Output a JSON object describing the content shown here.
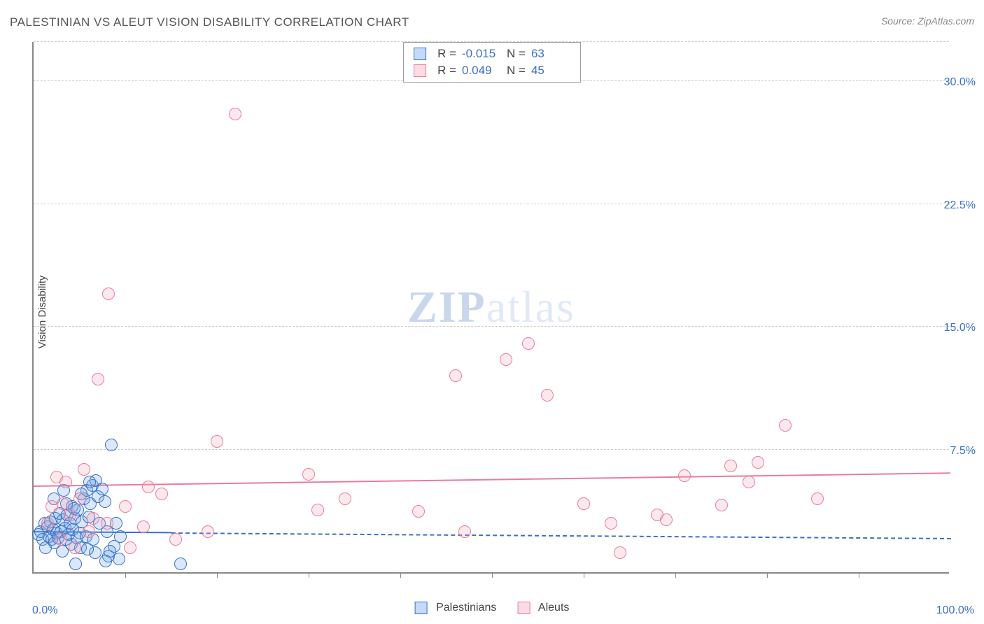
{
  "title": "PALESTINIAN VS ALEUT VISION DISABILITY CORRELATION CHART",
  "source": "Source: ZipAtlas.com",
  "y_axis_label": "Vision Disability",
  "watermark": {
    "zip": "ZIP",
    "atlas": "atlas"
  },
  "chart": {
    "type": "scatter",
    "xlim": [
      0,
      100
    ],
    "ylim": [
      0,
      32.5
    ],
    "x_ticks_minor_step": 10,
    "y_ticks": [
      {
        "value": 7.5,
        "label": "7.5%"
      },
      {
        "value": 15.0,
        "label": "15.0%"
      },
      {
        "value": 22.5,
        "label": "22.5%"
      },
      {
        "value": 30.0,
        "label": "30.0%"
      }
    ],
    "x_tick_labels": [
      {
        "value": 0,
        "label": "0.0%"
      },
      {
        "value": 100,
        "label": "100.0%"
      }
    ],
    "background_color": "#ffffff",
    "grid_color": "#cccccc",
    "axis_color": "#888888",
    "tick_label_color": "#3b6fc9",
    "point_radius": 9,
    "point_border_width": 1.5,
    "fill_opacity": 0.25,
    "series": [
      {
        "name": "Palestinians",
        "color": "#6da2e8",
        "border_color": "#3b6fc9",
        "R": "-0.015",
        "N": "63",
        "trend": {
          "y_start": 2.6,
          "y_end": 2.2,
          "style": "solid_then_dashed",
          "solid_until_x": 15,
          "width": 2
        },
        "points": [
          [
            0.5,
            2.3
          ],
          [
            0.8,
            2.5
          ],
          [
            1.0,
            2.0
          ],
          [
            1.2,
            3.0
          ],
          [
            1.3,
            1.5
          ],
          [
            1.5,
            2.8
          ],
          [
            1.7,
            2.2
          ],
          [
            1.8,
            3.1
          ],
          [
            2.0,
            2.0
          ],
          [
            2.1,
            2.6
          ],
          [
            2.3,
            1.8
          ],
          [
            2.4,
            3.3
          ],
          [
            2.5,
            2.4
          ],
          [
            2.7,
            2.1
          ],
          [
            2.8,
            3.6
          ],
          [
            3.0,
            2.5
          ],
          [
            3.1,
            1.3
          ],
          [
            3.2,
            3.2
          ],
          [
            3.4,
            2.7
          ],
          [
            3.5,
            2.0
          ],
          [
            3.7,
            3.5
          ],
          [
            3.8,
            2.3
          ],
          [
            4.0,
            3.0
          ],
          [
            4.1,
            1.7
          ],
          [
            4.2,
            4.0
          ],
          [
            4.3,
            2.6
          ],
          [
            4.5,
            3.3
          ],
          [
            4.7,
            2.1
          ],
          [
            4.8,
            3.8
          ],
          [
            5.0,
            2.4
          ],
          [
            5.1,
            1.5
          ],
          [
            5.3,
            3.1
          ],
          [
            5.5,
            4.5
          ],
          [
            5.7,
            2.2
          ],
          [
            5.8,
            5.0
          ],
          [
            6.0,
            3.4
          ],
          [
            6.2,
            4.2
          ],
          [
            6.4,
            5.3
          ],
          [
            6.5,
            2.0
          ],
          [
            6.7,
            1.2
          ],
          [
            6.8,
            5.6
          ],
          [
            7.0,
            4.6
          ],
          [
            7.2,
            3.0
          ],
          [
            7.5,
            5.1
          ],
          [
            7.8,
            4.3
          ],
          [
            8.0,
            2.5
          ],
          [
            8.2,
            1.0
          ],
          [
            8.5,
            7.8
          ],
          [
            8.8,
            1.6
          ],
          [
            9.0,
            3.0
          ],
          [
            9.3,
            0.8
          ],
          [
            9.5,
            2.2
          ],
          [
            4.4,
            3.9
          ],
          [
            5.2,
            4.8
          ],
          [
            3.6,
            4.2
          ],
          [
            6.1,
            5.5
          ],
          [
            2.2,
            4.5
          ],
          [
            3.3,
            5.0
          ],
          [
            4.6,
            0.5
          ],
          [
            7.9,
            0.7
          ],
          [
            8.3,
            1.3
          ],
          [
            16.0,
            0.5
          ],
          [
            5.9,
            1.4
          ]
        ]
      },
      {
        "name": "Aleuts",
        "color": "#f4a6b8",
        "border_color": "#e87d9a",
        "R": "0.049",
        "N": "45",
        "trend": {
          "y_start": 5.4,
          "y_end": 6.2,
          "style": "solid",
          "width": 2.5
        },
        "points": [
          [
            1.5,
            3.0
          ],
          [
            2.0,
            4.0
          ],
          [
            3.0,
            2.0
          ],
          [
            3.5,
            5.5
          ],
          [
            4.0,
            3.5
          ],
          [
            4.5,
            1.5
          ],
          [
            5.0,
            4.5
          ],
          [
            5.5,
            6.3
          ],
          [
            6.0,
            2.5
          ],
          [
            7.0,
            11.8
          ],
          [
            8.0,
            3.0
          ],
          [
            8.2,
            17.0
          ],
          [
            10.0,
            4.0
          ],
          [
            10.5,
            1.5
          ],
          [
            12.0,
            2.8
          ],
          [
            12.5,
            5.2
          ],
          [
            14.0,
            4.8
          ],
          [
            15.5,
            2.0
          ],
          [
            19.0,
            2.5
          ],
          [
            20.0,
            8.0
          ],
          [
            22.0,
            28.0
          ],
          [
            30.0,
            6.0
          ],
          [
            31.0,
            3.8
          ],
          [
            34.0,
            4.5
          ],
          [
            42.0,
            3.7
          ],
          [
            46.0,
            12.0
          ],
          [
            47.0,
            2.5
          ],
          [
            51.5,
            13.0
          ],
          [
            54.0,
            14.0
          ],
          [
            56.0,
            10.8
          ],
          [
            60.0,
            4.2
          ],
          [
            63.0,
            3.0
          ],
          [
            64.0,
            1.2
          ],
          [
            68.0,
            3.5
          ],
          [
            69.0,
            3.2
          ],
          [
            71.0,
            5.9
          ],
          [
            75.0,
            4.1
          ],
          [
            76.0,
            6.5
          ],
          [
            78.0,
            5.5
          ],
          [
            79.0,
            6.7
          ],
          [
            82.0,
            9.0
          ],
          [
            85.5,
            4.5
          ],
          [
            2.5,
            5.8
          ],
          [
            3.2,
            4.2
          ],
          [
            6.5,
            3.3
          ]
        ]
      }
    ]
  },
  "stats_legend_labels": {
    "R": "R =",
    "N": "N ="
  },
  "series_legend_label_1": "Palestinians",
  "series_legend_label_2": "Aleuts"
}
